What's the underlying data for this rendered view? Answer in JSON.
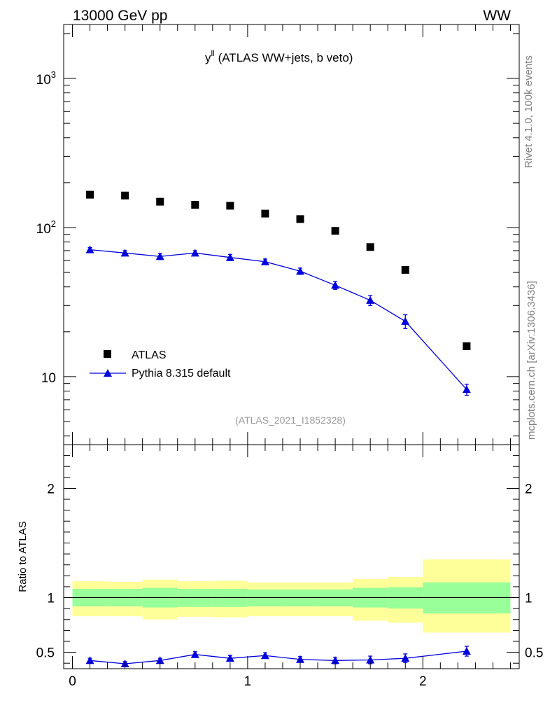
{
  "header": {
    "left_title": "13000 GeV pp",
    "right_title": "WW"
  },
  "side_labels": {
    "version": "Rivet 4.1.0,  100k events",
    "source": "mcplots.cern.ch [arXiv:1306.3436]"
  },
  "colors": {
    "data": "#000000",
    "mc": "#0000dd",
    "band_inner": "#99ff99",
    "band_outer": "#ffff99",
    "watermark": "#999999"
  },
  "chart_data": [
    {
      "type": "scatter",
      "panel": "main",
      "title": "y^ll (ATLAS WW+jets, b veto)",
      "title_main": "y",
      "title_sup": "ll",
      "title_rest": " (ATLAS WW+jets, b veto)",
      "watermark": "(ATLAS_2021_I1852328)",
      "yscale": "log",
      "xlim": [
        -0.05,
        2.55
      ],
      "ylim": [
        3.5,
        2300
      ],
      "ytick_labels": [
        {
          "value": 1000,
          "base": "10",
          "exp": "3"
        },
        {
          "value": 100,
          "base": "10",
          "exp": "2"
        },
        {
          "value": 10,
          "base": "10",
          "exp": ""
        }
      ],
      "legend": {
        "position": "bottom-left",
        "entries": [
          {
            "label": "ATLAS",
            "marker": "square"
          },
          {
            "label": "Pythia 8.315 default",
            "marker": "triangle-line"
          }
        ]
      },
      "series": [
        {
          "name": "ATLAS",
          "x": [
            0.1,
            0.3,
            0.5,
            0.7,
            0.9,
            1.1,
            1.3,
            1.5,
            1.7,
            1.9,
            2.25
          ],
          "values": [
            166,
            164,
            149,
            142,
            140,
            124,
            114,
            95,
            74,
            52,
            16
          ]
        },
        {
          "name": "Pythia 8.315 default",
          "x": [
            0.1,
            0.3,
            0.5,
            0.7,
            0.9,
            1.1,
            1.3,
            1.5,
            1.7,
            1.9,
            2.25
          ],
          "values": [
            71,
            67.5,
            64,
            67.5,
            63,
            59,
            51,
            41,
            32.5,
            23.5,
            8.2
          ],
          "errors": [
            2.5,
            2.5,
            3,
            2.5,
            3,
            2.5,
            2.5,
            2.5,
            2.5,
            2.5,
            0.7
          ]
        }
      ]
    },
    {
      "type": "line",
      "panel": "ratio",
      "ylabel": "Ratio to ATLAS",
      "xlim": [
        -0.05,
        2.55
      ],
      "ylim": [
        0.35,
        2.4
      ],
      "x_tick_labels": [
        "0",
        "1",
        "2"
      ],
      "x_tick_values": [
        0,
        1,
        2
      ],
      "y_tick_labels": [
        "0.5",
        "1",
        "2"
      ],
      "y_tick_values": [
        0.5,
        1,
        2
      ],
      "bins": [
        {
          "lo": 0.0,
          "hi": 0.2,
          "inner": [
            0.92,
            1.08
          ],
          "outer": [
            0.83,
            1.15
          ]
        },
        {
          "lo": 0.2,
          "hi": 0.4,
          "inner": [
            0.92,
            1.08
          ],
          "outer": [
            0.83,
            1.145
          ]
        },
        {
          "lo": 0.4,
          "hi": 0.6,
          "inner": [
            0.91,
            1.09
          ],
          "outer": [
            0.8,
            1.165
          ]
        },
        {
          "lo": 0.6,
          "hi": 0.8,
          "inner": [
            0.915,
            1.08
          ],
          "outer": [
            0.825,
            1.15
          ]
        },
        {
          "lo": 0.8,
          "hi": 1.0,
          "inner": [
            0.915,
            1.08
          ],
          "outer": [
            0.82,
            1.155
          ]
        },
        {
          "lo": 1.0,
          "hi": 1.2,
          "inner": [
            0.92,
            1.075
          ],
          "outer": [
            0.83,
            1.14
          ]
        },
        {
          "lo": 1.2,
          "hi": 1.4,
          "inner": [
            0.92,
            1.075
          ],
          "outer": [
            0.83,
            1.14
          ]
        },
        {
          "lo": 1.4,
          "hi": 1.6,
          "inner": [
            0.92,
            1.075
          ],
          "outer": [
            0.83,
            1.14
          ]
        },
        {
          "lo": 1.6,
          "hi": 1.8,
          "inner": [
            0.91,
            1.09
          ],
          "outer": [
            0.79,
            1.17
          ]
        },
        {
          "lo": 1.8,
          "hi": 2.0,
          "inner": [
            0.9,
            1.095
          ],
          "outer": [
            0.77,
            1.19
          ]
        },
        {
          "lo": 2.0,
          "hi": 2.5,
          "inner": [
            0.855,
            1.14
          ],
          "outer": [
            0.68,
            1.35
          ]
        }
      ],
      "series": [
        {
          "name": "Pythia 8.315 default",
          "x": [
            0.1,
            0.3,
            0.5,
            0.7,
            0.9,
            1.1,
            1.3,
            1.5,
            1.7,
            1.9,
            2.25
          ],
          "values": [
            0.425,
            0.395,
            0.425,
            0.48,
            0.445,
            0.47,
            0.435,
            0.425,
            0.43,
            0.445,
            0.51
          ],
          "errors": [
            0.02,
            0.02,
            0.02,
            0.025,
            0.025,
            0.025,
            0.025,
            0.03,
            0.035,
            0.04,
            0.045
          ]
        }
      ]
    }
  ]
}
